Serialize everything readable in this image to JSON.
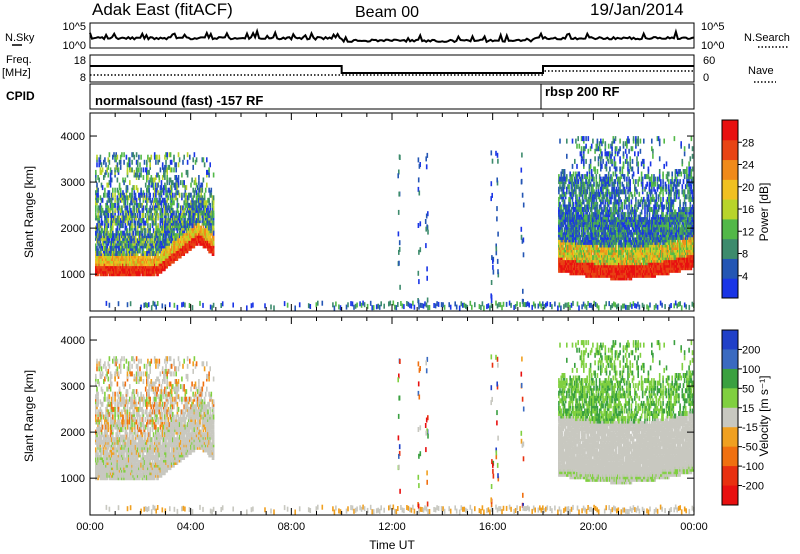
{
  "header": {
    "station": "Adak East (fitACF)",
    "beam": "Beam 00",
    "date": "19/Jan/2014"
  },
  "strip_labels": {
    "nsky": "N.Sky",
    "nsearch": "N.Search",
    "freq_top": "Freq.",
    "freq_unit": "[MHz]",
    "nave": "Nave",
    "cpid": "CPID"
  },
  "strip_ticks": {
    "nsky_left": [
      "10^5",
      "10^0"
    ],
    "nsky_right": [
      "10^5",
      "10^0"
    ],
    "freq_left": [
      "18",
      "8"
    ],
    "nave_right": [
      "60",
      "0"
    ]
  },
  "cpid_segments": [
    {
      "label": "normalsound (fast) -157 RF",
      "start_h": 0,
      "end_h": 18
    },
    {
      "label": "rbsp 200 RF",
      "start_h": 18,
      "end_h": 24
    }
  ],
  "chart_data": [
    {
      "type": "heatmap",
      "name": "power",
      "ylabel": "Slant Range [km]",
      "xlim": [
        0,
        24
      ],
      "ylim": [
        200,
        4500
      ],
      "yticks": [
        "1000",
        "2000",
        "3000",
        "4000"
      ],
      "colorbar": {
        "label": "Power [dB]",
        "ticks": [
          "4",
          "8",
          "12",
          "16",
          "20",
          "24",
          "28"
        ],
        "colors": [
          "#1a35e6",
          "#2456b4",
          "#3d8b6d",
          "#52b848",
          "#b8d42a",
          "#f0c020",
          "#f08a1a",
          "#e84414",
          "#e81010"
        ]
      },
      "regions": [
        {
          "x0": 0.2,
          "x1": 4.9,
          "y0": 900,
          "y1": 3550,
          "desc": "early echoes"
        },
        {
          "x0": 18.6,
          "x1": 24.0,
          "y0": 700,
          "y1": 3900,
          "desc": "late echoes"
        },
        {
          "x0": 0.5,
          "x1": 24.0,
          "y0": 200,
          "y1": 330,
          "desc": "near range band"
        }
      ]
    },
    {
      "type": "heatmap",
      "name": "velocity",
      "ylabel": "Slant Range [km]",
      "xlabel": "Time UT",
      "xlim": [
        0,
        24
      ],
      "ylim": [
        200,
        4500
      ],
      "xticks": [
        "00:00",
        "04:00",
        "08:00",
        "12:00",
        "16:00",
        "20:00",
        "00:00"
      ],
      "yticks": [
        "1000",
        "2000",
        "3000",
        "4000"
      ],
      "colorbar": {
        "label": "Velocity [m s⁻¹]",
        "ticks": [
          "200",
          "100",
          "50",
          "15",
          "-15",
          "-50",
          "-100",
          "-200"
        ],
        "colors": [
          "#2040c8",
          "#3a6ac0",
          "#3aa040",
          "#80d040",
          "#c8c8c0",
          "#f0a020",
          "#f07010",
          "#e83010",
          "#e81010"
        ]
      }
    }
  ]
}
